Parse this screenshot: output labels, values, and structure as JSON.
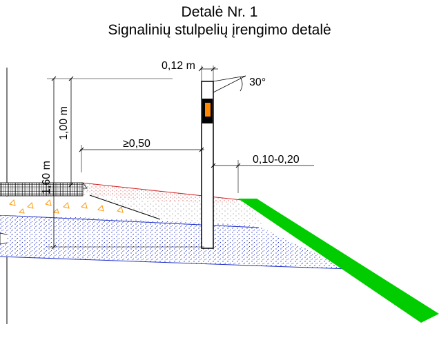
{
  "title": "Detalė Nr. 1",
  "subtitle": "Signalinių stulpelių įrengimo detalė",
  "dimensions": {
    "post_width": "0,12 m",
    "angle": "30°",
    "offset_from_edge": "≥0,50",
    "post_gap": "0,10-0,20",
    "post_height_above": "1,00 m",
    "post_total_height": "1,60 m"
  },
  "colors": {
    "edge_slope": "#00cc00",
    "reflector": "#ff8800",
    "subbase_dots": "#2233cc",
    "shoulder_dots": "#cc2222",
    "base_hatch": "#ff9900"
  },
  "icons": {
    "reflector": "orange-reflector-icon",
    "asphalt": "hatch-pattern"
  }
}
